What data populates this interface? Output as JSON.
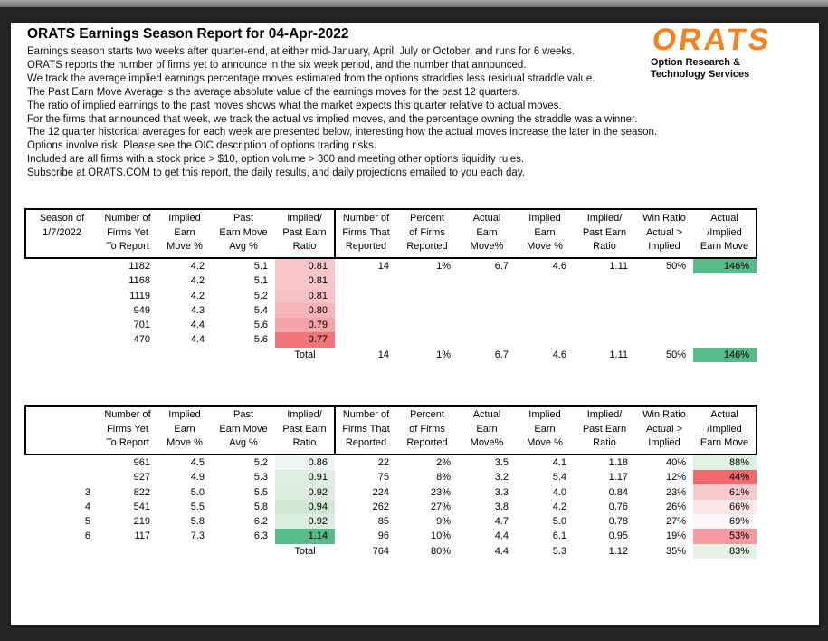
{
  "report": {
    "title": "ORATS Earnings Season Report for 04-Apr-2022",
    "intro_lines": [
      "Earnings season starts two weeks after quarter-end, at either mid-January, April, July or October, and runs for 6 weeks.",
      "ORATS reports the number of firms yet to announce in the six week period, and the number that announced.",
      "We track the average implied earnings percentage moves estimated from the options straddles less residual straddle value.",
      "The Past Earn Move Average is the average absolute value of the earnings moves for the past 12 quarters.",
      "The ratio of implied earnings to the past moves shows what the market expects this quarter relative to actual moves.",
      "For the firms that announced that week, we track the actual vs implied moves, and the percentage owning the straddle was a winner.",
      "The 12 quarter historical averages for each week are presented below, interesting how the actual moves increase the later in the season.",
      "Options involve risk. Please see the OIC description of options trading risks.",
      "Included are all firms with a stock price > $10, option volume > 300 and meeting other options liquidity rules.",
      "Subscribe at ORATS.COM to get this report, the daily results, and daily projections emailed to you each day."
    ]
  },
  "logo": {
    "text": "ORATS",
    "color": "#F58220",
    "tagline": [
      "Option Research &",
      "Technology Services"
    ]
  },
  "colors": {
    "green_strong": "#57BB8A",
    "red_strong": "#F1686D",
    "table_border": "#000000"
  },
  "tables": [
    {
      "name": "current-season-by-week",
      "headers": [
        [
          "Season of",
          "1/7/2022",
          ""
        ],
        [
          "Number of",
          "Firms Yet",
          "To Report"
        ],
        [
          "Implied",
          "Earn",
          "Move %"
        ],
        [
          "Past",
          "Earn Move",
          "Avg %"
        ],
        [
          "Implied/",
          "Past Earn",
          "Ratio"
        ],
        [
          "Number of",
          "Firms That",
          "Reported"
        ],
        [
          "Percent",
          "of Firms",
          "Reported"
        ],
        [
          "Actual",
          "Earn",
          "Move%"
        ],
        [
          "Implied",
          "Earn",
          "Move %"
        ],
        [
          "Implied/",
          "Past Earn",
          "Ratio"
        ],
        [
          "Win Ratio",
          "Actual >",
          "Implied"
        ],
        [
          "Actual",
          "/Implied",
          "Earn Move"
        ]
      ],
      "rows": [
        {
          "c": [
            "",
            "1182",
            "4.2",
            "5.1",
            "0.81",
            "14",
            "1%",
            "6.7",
            "4.6",
            "1.11",
            "50%",
            "146%"
          ],
          "bg5": "#F8C6C8",
          "bg12": "#57BB8A"
        },
        {
          "c": [
            "",
            "1168",
            "4.2",
            "5.1",
            "0.81",
            "",
            "",
            "",
            "",
            "",
            "",
            ""
          ],
          "bg5": "#F8C6C8",
          "bg12": ""
        },
        {
          "c": [
            "",
            "1119",
            "4.2",
            "5.2",
            "0.81",
            "",
            "",
            "",
            "",
            "",
            "",
            ""
          ],
          "bg5": "#F7C3C6",
          "bg12": ""
        },
        {
          "c": [
            "",
            "949",
            "4.3",
            "5.4",
            "0.80",
            "",
            "",
            "",
            "",
            "",
            "",
            ""
          ],
          "bg5": "#F6B5B8",
          "bg12": ""
        },
        {
          "c": [
            "",
            "701",
            "4.4",
            "5.6",
            "0.79",
            "",
            "",
            "",
            "",
            "",
            "",
            ""
          ],
          "bg5": "#F4A3A7",
          "bg12": ""
        },
        {
          "c": [
            "",
            "470",
            "4.4",
            "5.6",
            "0.77",
            "",
            "",
            "",
            "",
            "",
            "",
            ""
          ],
          "bg5": "#F1757B",
          "bg12": ""
        }
      ],
      "total": {
        "c": [
          "",
          "",
          "",
          "",
          "Total",
          "14",
          "1%",
          "6.7",
          "4.6",
          "1.11",
          "50%",
          "146%"
        ],
        "bg5": "",
        "bg12": "#57BB8A"
      }
    },
    {
      "name": "twelve-quarter-historical-by-week",
      "headers": [
        [
          "",
          "",
          ""
        ],
        [
          "Number of",
          "Firms Yet",
          "To Report"
        ],
        [
          "Implied",
          "Earn",
          "Move %"
        ],
        [
          "Past",
          "Earn Move",
          "Avg %"
        ],
        [
          "Implied/",
          "Past Earn",
          "Ratio"
        ],
        [
          "Number of",
          "Firms That",
          "Reported"
        ],
        [
          "Percent",
          "of Firms",
          "Reported"
        ],
        [
          "Actual",
          "Earn",
          "Move%"
        ],
        [
          "Implied",
          "Earn",
          "Move %"
        ],
        [
          "Implied/",
          "Past Earn",
          "Ratio"
        ],
        [
          "Win Ratio",
          "Actual >",
          "Implied"
        ],
        [
          "Actual",
          "/Implied",
          "Earn Move"
        ]
      ],
      "rows": [
        {
          "c": [
            "",
            "961",
            "4.5",
            "5.2",
            "0.86",
            "22",
            "2%",
            "3.5",
            "4.1",
            "1.18",
            "40%",
            "88%"
          ],
          "bg5": "#EFF5F0",
          "bg12": "#DFF0E4"
        },
        {
          "c": [
            "",
            "927",
            "4.9",
            "5.3",
            "0.91",
            "75",
            "8%",
            "3.2",
            "5.4",
            "1.17",
            "12%",
            "44%"
          ],
          "bg5": "#DFEEE2",
          "bg12": "#F1686D"
        },
        {
          "c": [
            "3",
            "822",
            "5.0",
            "5.5",
            "0.92",
            "224",
            "23%",
            "3.3",
            "4.0",
            "0.84",
            "23%",
            "61%"
          ],
          "bg5": "#DBECDE",
          "bg12": "#F8C9CB"
        },
        {
          "c": [
            "4",
            "541",
            "5.5",
            "5.8",
            "0.94",
            "262",
            "27%",
            "3.8",
            "4.2",
            "0.76",
            "26%",
            "66%"
          ],
          "bg5": "#CFE7D4",
          "bg12": "#FBE6E7"
        },
        {
          "c": [
            "5",
            "219",
            "5.8",
            "6.2",
            "0.92",
            "85",
            "9%",
            "4.7",
            "5.0",
            "0.78",
            "27%",
            "69%"
          ],
          "bg5": "#DBECDE",
          "bg12": "#FEF8F8"
        },
        {
          "c": [
            "6",
            "117",
            "7.3",
            "6.3",
            "1.14",
            "96",
            "10%",
            "4.4",
            "6.1",
            "0.95",
            "19%",
            "53%"
          ],
          "bg5": "#57BB8A",
          "bg12": "#F59A9E"
        }
      ],
      "total": {
        "c": [
          "",
          "",
          "",
          "",
          "Total",
          "764",
          "80%",
          "4.4",
          "5.3",
          "1.12",
          "35%",
          "83%"
        ],
        "bg5": "",
        "bg12": "#E3F1E7"
      }
    }
  ]
}
